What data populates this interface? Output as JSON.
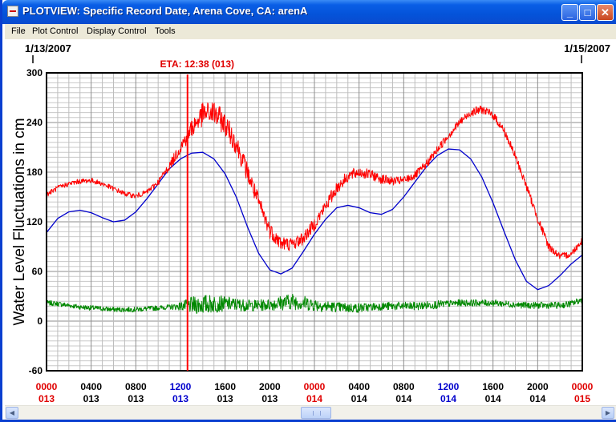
{
  "window": {
    "title": "PLOTVIEW: Specific Record Date, Arena Cove, CA: arenA",
    "min_glyph": "_",
    "max_glyph": "□",
    "close_glyph": "✕"
  },
  "menu": {
    "items": [
      {
        "label": "File"
      },
      {
        "label": "Plot Control"
      },
      {
        "label": "Display Control"
      },
      {
        "label": "Tools"
      }
    ]
  },
  "colors": {
    "observed": "#ff0000",
    "predicted": "#0000cc",
    "residual": "#008800",
    "eta_line": "#ff0000",
    "label_red": "#e00000",
    "label_blue": "#0000cc"
  },
  "chart_data": {
    "type": "line",
    "date_start": "1/13/2007",
    "date_end": "1/15/2007",
    "ylabel": "Water Level Fluctuations in cm",
    "ylim": [
      -60,
      300
    ],
    "xlim_hours": [
      0,
      48
    ],
    "y_ticks": [
      "300",
      "240",
      "180",
      "120",
      "60",
      "0",
      "-60"
    ],
    "x_ticks": [
      {
        "hour": 0,
        "time": "0000",
        "day": "013",
        "color": "red"
      },
      {
        "hour": 4,
        "time": "0400",
        "day": "013",
        "color": "black"
      },
      {
        "hour": 8,
        "time": "0800",
        "day": "013",
        "color": "black"
      },
      {
        "hour": 12,
        "time": "1200",
        "day": "013",
        "color": "blue"
      },
      {
        "hour": 16,
        "time": "1600",
        "day": "013",
        "color": "black"
      },
      {
        "hour": 20,
        "time": "2000",
        "day": "013",
        "color": "black"
      },
      {
        "hour": 24,
        "time": "0000",
        "day": "014",
        "color": "red"
      },
      {
        "hour": 28,
        "time": "0400",
        "day": "014",
        "color": "black"
      },
      {
        "hour": 32,
        "time": "0800",
        "day": "014",
        "color": "black"
      },
      {
        "hour": 36,
        "time": "1200",
        "day": "014",
        "color": "blue"
      },
      {
        "hour": 40,
        "time": "1600",
        "day": "014",
        "color": "black"
      },
      {
        "hour": 44,
        "time": "2000",
        "day": "014",
        "color": "black"
      },
      {
        "hour": 48,
        "time": "0000",
        "day": "015",
        "color": "red"
      }
    ],
    "eta": {
      "label": "ETA: 12:38 (013)",
      "hour": 12.63
    },
    "series": [
      {
        "key": "observed",
        "hours": [
          0,
          1,
          2,
          3,
          4,
          5,
          6,
          7,
          8,
          9,
          10,
          11,
          12,
          13,
          14,
          15,
          16,
          17,
          18,
          19,
          20,
          21,
          22,
          23,
          24,
          25,
          26,
          27,
          28,
          29,
          30,
          31,
          32,
          33,
          34,
          35,
          36,
          37,
          38,
          39,
          40,
          41,
          42,
          43,
          44,
          45,
          46,
          47,
          48
        ],
        "values": [
          153,
          161,
          166,
          169,
          170,
          166,
          160,
          154,
          151,
          156,
          168,
          187,
          210,
          233,
          250,
          252,
          238,
          214,
          180,
          143,
          110,
          94,
          93,
          100,
          117,
          139,
          161,
          175,
          180,
          177,
          172,
          169,
          170,
          176,
          189,
          207,
          224,
          240,
          252,
          256,
          249,
          230,
          199,
          163,
          124,
          90,
          78,
          81,
          98
        ],
        "noise": [
          3,
          3,
          3,
          3,
          3,
          3,
          3,
          3,
          3,
          3,
          4,
          5,
          8,
          12,
          14,
          15,
          14,
          13,
          12,
          11,
          10,
          9,
          8,
          8,
          8,
          8,
          8,
          7,
          7,
          6,
          6,
          5,
          5,
          5,
          5,
          5,
          5,
          5,
          5,
          5,
          5,
          5,
          5,
          5,
          5,
          5,
          4,
          4,
          4
        ]
      },
      {
        "key": "predicted",
        "hours": [
          0,
          1,
          2,
          3,
          4,
          5,
          6,
          7,
          8,
          9,
          10,
          11,
          12,
          13,
          14,
          15,
          16,
          17,
          18,
          19,
          20,
          21,
          22,
          23,
          24,
          25,
          26,
          27,
          28,
          29,
          30,
          31,
          32,
          33,
          34,
          35,
          36,
          37,
          38,
          39,
          40,
          41,
          42,
          43,
          44,
          45,
          46,
          47,
          48
        ],
        "values": [
          107,
          124,
          132,
          134,
          131,
          125,
          120,
          122,
          132,
          148,
          166,
          184,
          196,
          203,
          204,
          196,
          178,
          150,
          114,
          82,
          62,
          57,
          64,
          84,
          105,
          123,
          137,
          140,
          137,
          131,
          129,
          135,
          150,
          168,
          186,
          200,
          208,
          207,
          196,
          174,
          143,
          108,
          74,
          48,
          38,
          43,
          55,
          69,
          80
        ],
        "noise": []
      },
      {
        "key": "residual",
        "hours": [
          0,
          1,
          2,
          3,
          4,
          5,
          6,
          7,
          8,
          9,
          10,
          11,
          12,
          13,
          14,
          15,
          16,
          17,
          18,
          19,
          20,
          21,
          22,
          23,
          24,
          25,
          26,
          27,
          28,
          29,
          30,
          31,
          32,
          33,
          34,
          35,
          36,
          37,
          38,
          39,
          40,
          41,
          42,
          43,
          44,
          45,
          46,
          47,
          48
        ],
        "values": [
          22,
          21,
          19,
          17,
          16,
          15,
          14,
          14,
          14,
          15,
          16,
          17,
          18,
          19,
          20,
          21,
          21,
          20,
          19,
          19,
          20,
          22,
          24,
          22,
          20,
          18,
          17,
          16,
          16,
          17,
          18,
          18,
          18,
          18,
          19,
          20,
          21,
          22,
          22,
          22,
          22,
          21,
          20,
          19,
          19,
          19,
          19,
          21,
          26
        ],
        "noise": [
          3,
          3,
          3,
          3,
          3,
          3,
          3,
          3,
          3,
          3,
          3,
          3,
          5,
          10,
          12,
          11,
          9,
          8,
          7,
          7,
          7,
          9,
          10,
          9,
          8,
          7,
          6,
          6,
          6,
          5,
          5,
          5,
          5,
          5,
          5,
          5,
          4,
          4,
          4,
          4,
          4,
          4,
          4,
          4,
          4,
          4,
          4,
          4,
          4
        ]
      }
    ]
  }
}
